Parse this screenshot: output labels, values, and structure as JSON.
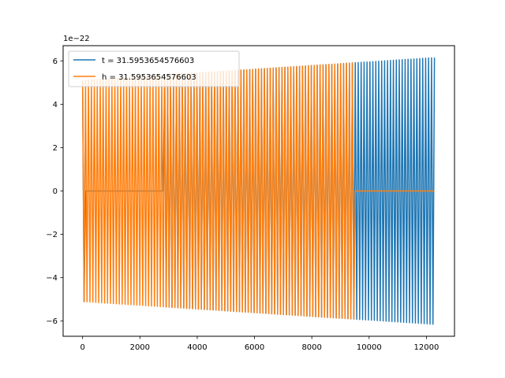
{
  "chart_data": {
    "type": "line",
    "title": "",
    "xlabel": "",
    "ylabel": "",
    "xlim": [
      -680,
      12980
    ],
    "ylim": [
      -6.7,
      6.7
    ],
    "y_offset_label": "1e−22",
    "x_ticks": [
      0,
      2000,
      4000,
      6000,
      8000,
      10000,
      12000
    ],
    "y_ticks": [
      -6,
      -4,
      -2,
      0,
      2,
      4,
      6
    ],
    "grid": false,
    "legend_position": "top-left",
    "series": [
      {
        "name": "t = 31.5953654576603",
        "color": "#1f77b4",
        "x_start": 0,
        "x_end": 12280,
        "zero_until": 2830,
        "amplitude_start": 5.1,
        "amplitude_end": 6.15,
        "oscillations": 120
      },
      {
        "name": "h = 31.5953654576603",
        "color": "#ff7f0e",
        "x_start": 0,
        "x_end": 12280,
        "zero_after": 9500,
        "amplitude_start": 5.1,
        "amplitude_end": 6.15,
        "oscillations": 120
      }
    ]
  }
}
